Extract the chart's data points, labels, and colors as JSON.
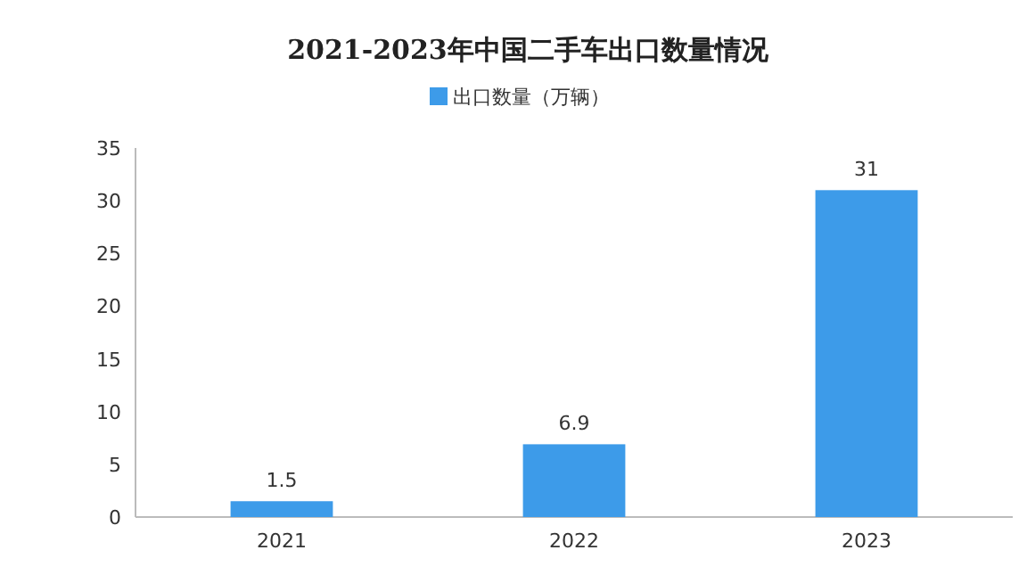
{
  "chart_data": {
    "type": "bar",
    "title": "2021-2023年中国二手车出口数量情况",
    "categories": [
      "2021",
      "2022",
      "2023"
    ],
    "series": [
      {
        "name": "出口数量（万辆）",
        "color": "#3d9be9",
        "values": [
          1.5,
          6.9,
          31
        ]
      }
    ],
    "ylim": [
      0,
      35
    ],
    "yticks": [
      0,
      5,
      10,
      15,
      20,
      25,
      30,
      35
    ],
    "grid": false,
    "legend": "top",
    "data_labels": true
  }
}
